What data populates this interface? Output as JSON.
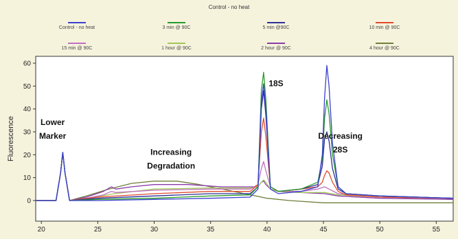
{
  "chart_data": {
    "type": "line",
    "title": "Control - no heat",
    "xlabel": "",
    "ylabel": "Fluorescence",
    "xlim": [
      19.5,
      56.5
    ],
    "ylim": [
      -9,
      63
    ],
    "xticks": [
      20,
      25,
      30,
      35,
      40,
      45,
      50,
      55
    ],
    "yticks": [
      0,
      10,
      20,
      30,
      40,
      50,
      60
    ],
    "grid": false,
    "legend_position": "top",
    "annotations": [
      {
        "text": "Lower",
        "x": 21.0,
        "y": 33
      },
      {
        "text": "Marker",
        "x": 21.0,
        "y": 27
      },
      {
        "text": "18S",
        "x": 40.8,
        "y": 50
      },
      {
        "text": "Increasing",
        "x": 31.5,
        "y": 20
      },
      {
        "text": "Degradation",
        "x": 31.5,
        "y": 14
      },
      {
        "text": "Decreasing",
        "x": 46.5,
        "y": 27
      },
      {
        "text": "28S",
        "x": 46.5,
        "y": 21
      }
    ],
    "series": [
      {
        "name": "Control - no heat",
        "color": "#3a3fcf",
        "points": [
          [
            19.5,
            0
          ],
          [
            21.3,
            0
          ],
          [
            21.7,
            12
          ],
          [
            21.9,
            21
          ],
          [
            22.1,
            12
          ],
          [
            22.5,
            0
          ],
          [
            25,
            0
          ],
          [
            30,
            0.5
          ],
          [
            35,
            1
          ],
          [
            38.5,
            1.5
          ],
          [
            39.2,
            5
          ],
          [
            39.5,
            43
          ],
          [
            39.7,
            51
          ],
          [
            39.9,
            40
          ],
          [
            40.3,
            5
          ],
          [
            41,
            3
          ],
          [
            43,
            4
          ],
          [
            44.5,
            6
          ],
          [
            44.9,
            20
          ],
          [
            45.1,
            45
          ],
          [
            45.3,
            59
          ],
          [
            45.5,
            50
          ],
          [
            45.8,
            25
          ],
          [
            46.3,
            6
          ],
          [
            47,
            3
          ],
          [
            50,
            2
          ],
          [
            56.5,
            1
          ]
        ]
      },
      {
        "name": "3 min @ 90C",
        "color": "#2a9a2a",
        "points": [
          [
            19.5,
            0
          ],
          [
            21.3,
            0
          ],
          [
            21.7,
            12
          ],
          [
            21.9,
            21
          ],
          [
            22.1,
            12
          ],
          [
            22.5,
            0
          ],
          [
            25,
            0.5
          ],
          [
            30,
            1
          ],
          [
            35,
            2
          ],
          [
            38.5,
            2.5
          ],
          [
            39.2,
            6
          ],
          [
            39.5,
            48
          ],
          [
            39.7,
            56
          ],
          [
            39.9,
            44
          ],
          [
            40.3,
            6
          ],
          [
            41,
            4
          ],
          [
            43,
            5
          ],
          [
            44.5,
            8
          ],
          [
            44.9,
            18
          ],
          [
            45.1,
            36
          ],
          [
            45.3,
            44
          ],
          [
            45.5,
            38
          ],
          [
            45.8,
            20
          ],
          [
            46.3,
            6
          ],
          [
            47,
            3
          ],
          [
            50,
            2
          ],
          [
            56.5,
            1
          ]
        ]
      },
      {
        "name": "5 min @90C",
        "color": "#2b2f9a",
        "points": [
          [
            19.5,
            0
          ],
          [
            21.3,
            0
          ],
          [
            21.7,
            12
          ],
          [
            21.9,
            21
          ],
          [
            22.1,
            12
          ],
          [
            22.5,
            0
          ],
          [
            25,
            1
          ],
          [
            30,
            2
          ],
          [
            35,
            3
          ],
          [
            38.5,
            3
          ],
          [
            39.2,
            6
          ],
          [
            39.5,
            40
          ],
          [
            39.7,
            48
          ],
          [
            39.9,
            37
          ],
          [
            40.3,
            6
          ],
          [
            41,
            4
          ],
          [
            43,
            5
          ],
          [
            44.5,
            7
          ],
          [
            44.9,
            15
          ],
          [
            45.1,
            27
          ],
          [
            45.3,
            30
          ],
          [
            45.5,
            26
          ],
          [
            45.8,
            14
          ],
          [
            46.3,
            5
          ],
          [
            47,
            3
          ],
          [
            50,
            2
          ],
          [
            56.5,
            1
          ]
        ]
      },
      {
        "name": "10 min @ 90C",
        "color": "#e04a2a",
        "points": [
          [
            19.5,
            0
          ],
          [
            21.3,
            0
          ],
          [
            21.7,
            12
          ],
          [
            21.9,
            21
          ],
          [
            22.1,
            12
          ],
          [
            22.5,
            0
          ],
          [
            25,
            1.5
          ],
          [
            30,
            3
          ],
          [
            35,
            4
          ],
          [
            38.5,
            4
          ],
          [
            39.2,
            7
          ],
          [
            39.5,
            30
          ],
          [
            39.7,
            36
          ],
          [
            39.9,
            28
          ],
          [
            40.3,
            6
          ],
          [
            41,
            4
          ],
          [
            43,
            5
          ],
          [
            44.5,
            6
          ],
          [
            44.9,
            8
          ],
          [
            45.1,
            11
          ],
          [
            45.3,
            13
          ],
          [
            45.5,
            12
          ],
          [
            45.8,
            8
          ],
          [
            46.3,
            4
          ],
          [
            47,
            2.5
          ],
          [
            50,
            1.5
          ],
          [
            56.5,
            1
          ]
        ]
      },
      {
        "name": "15 min @ 90C",
        "color": "#c070c0",
        "points": [
          [
            19.5,
            0
          ],
          [
            21.3,
            0
          ],
          [
            21.7,
            12
          ],
          [
            21.9,
            21
          ],
          [
            22.1,
            12
          ],
          [
            22.5,
            0
          ],
          [
            24,
            1
          ],
          [
            25.5,
            2.5
          ],
          [
            26.2,
            4
          ],
          [
            26.6,
            3.5
          ],
          [
            30,
            4.5
          ],
          [
            35,
            5
          ],
          [
            38.5,
            5
          ],
          [
            39.2,
            7
          ],
          [
            39.5,
            14
          ],
          [
            39.7,
            17
          ],
          [
            39.9,
            13
          ],
          [
            40.3,
            6
          ],
          [
            41,
            4
          ],
          [
            43,
            4
          ],
          [
            44.5,
            5
          ],
          [
            45.1,
            6
          ],
          [
            45.5,
            5
          ],
          [
            46.3,
            3
          ],
          [
            50,
            1.5
          ],
          [
            56.5,
            1
          ]
        ]
      },
      {
        "name": "1 hour @ 90C",
        "color": "#a3c75a",
        "points": [
          [
            19.5,
            0
          ],
          [
            21.3,
            0
          ],
          [
            21.7,
            12
          ],
          [
            21.9,
            21
          ],
          [
            22.1,
            12
          ],
          [
            22.5,
            0
          ],
          [
            24,
            1
          ],
          [
            26.5,
            3
          ],
          [
            30,
            5
          ],
          [
            35,
            5.5
          ],
          [
            38.5,
            5.5
          ],
          [
            39.2,
            6
          ],
          [
            39.5,
            8
          ],
          [
            39.7,
            9
          ],
          [
            39.9,
            8
          ],
          [
            40.3,
            5
          ],
          [
            41,
            4
          ],
          [
            43,
            3.5
          ],
          [
            45.1,
            3.5
          ],
          [
            46.3,
            2.5
          ],
          [
            50,
            1.5
          ],
          [
            56.5,
            1
          ]
        ]
      },
      {
        "name": "2 hour @ 90C",
        "color": "#8a3aa8",
        "points": [
          [
            19.5,
            0
          ],
          [
            21.3,
            0
          ],
          [
            21.7,
            12
          ],
          [
            21.9,
            21
          ],
          [
            22.1,
            12
          ],
          [
            22.5,
            0
          ],
          [
            24,
            1.5
          ],
          [
            25.5,
            4
          ],
          [
            26.2,
            6
          ],
          [
            26.6,
            5
          ],
          [
            28,
            6
          ],
          [
            30,
            7
          ],
          [
            33,
            7
          ],
          [
            36,
            6
          ],
          [
            38.5,
            6
          ],
          [
            39.2,
            6
          ],
          [
            39.5,
            8
          ],
          [
            39.7,
            8.5
          ],
          [
            39.9,
            7
          ],
          [
            40.3,
            5
          ],
          [
            41,
            4
          ],
          [
            43,
            3.5
          ],
          [
            45.1,
            3
          ],
          [
            46.3,
            2
          ],
          [
            50,
            1
          ],
          [
            56.5,
            0.5
          ]
        ]
      },
      {
        "name": "4 hour @ 90C",
        "color": "#6f7f3a",
        "points": [
          [
            19.5,
            0
          ],
          [
            21.3,
            0
          ],
          [
            21.7,
            12
          ],
          [
            21.9,
            21
          ],
          [
            22.1,
            12
          ],
          [
            22.5,
            0
          ],
          [
            24,
            2
          ],
          [
            26,
            5
          ],
          [
            28,
            7.5
          ],
          [
            30,
            8.5
          ],
          [
            32,
            8.5
          ],
          [
            34,
            7
          ],
          [
            36,
            5
          ],
          [
            38,
            3
          ],
          [
            39,
            2
          ],
          [
            40,
            1
          ],
          [
            42,
            0
          ],
          [
            45,
            -1
          ],
          [
            48,
            -1
          ],
          [
            56.5,
            -1
          ]
        ]
      }
    ]
  }
}
